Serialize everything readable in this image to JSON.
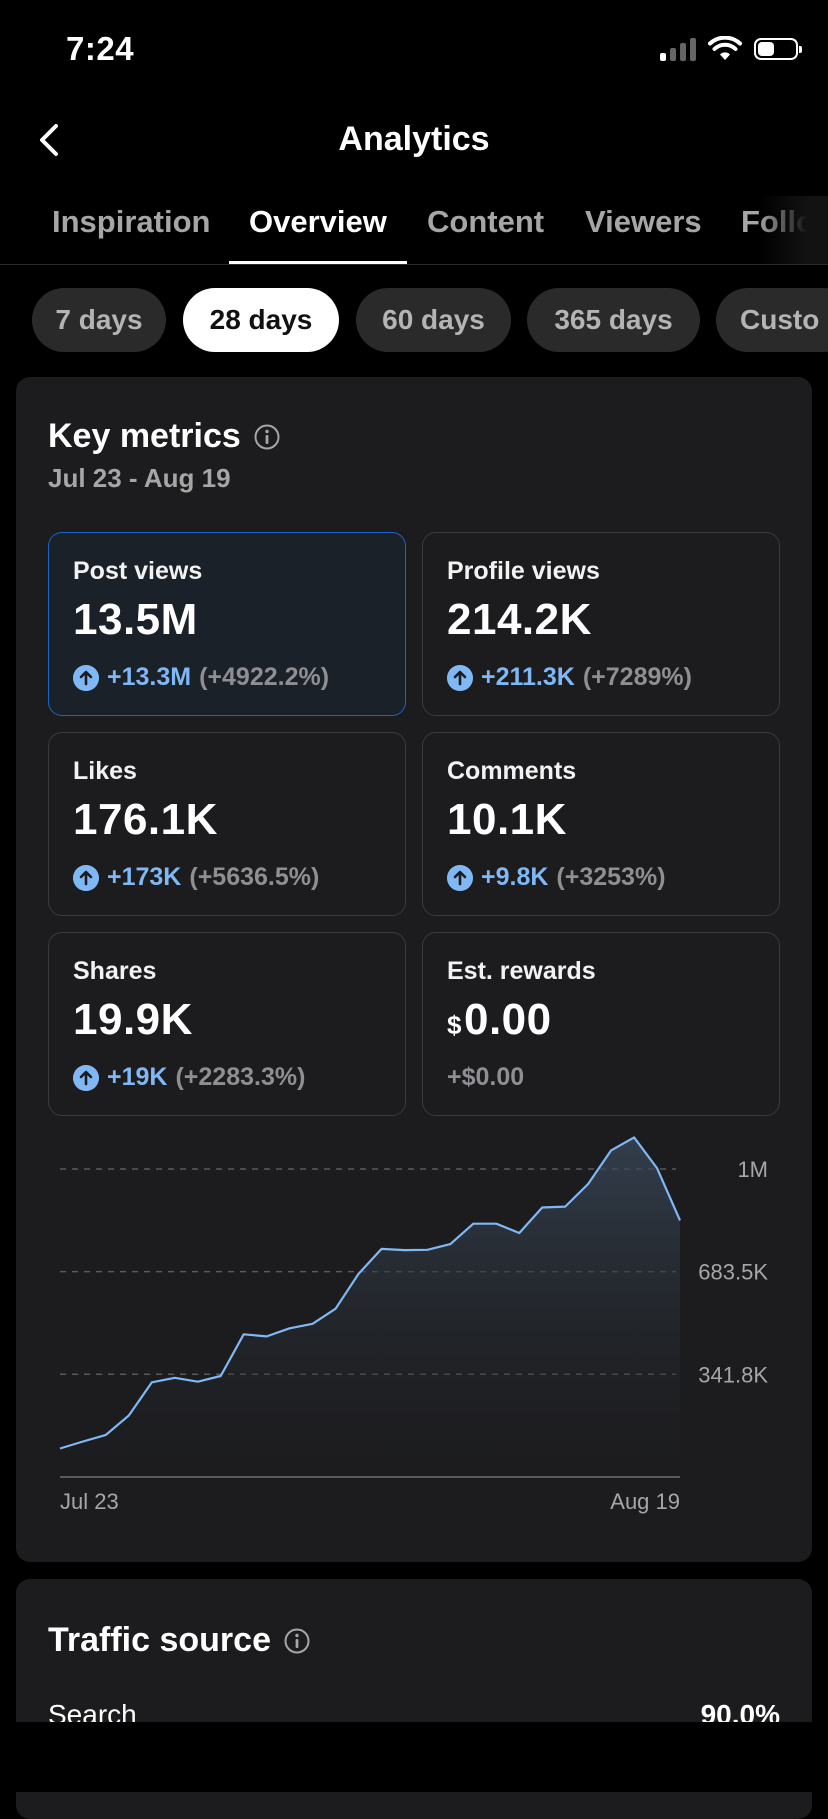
{
  "status_bar": {
    "time": "7:24"
  },
  "nav": {
    "title": "Analytics"
  },
  "tabs": [
    {
      "label": "Inspiration",
      "active": false
    },
    {
      "label": "Overview",
      "active": true
    },
    {
      "label": "Content",
      "active": false
    },
    {
      "label": "Viewers",
      "active": false
    },
    {
      "label": "Follow",
      "active": false
    }
  ],
  "date_ranges": [
    {
      "label": "7 days",
      "active": false
    },
    {
      "label": "28 days",
      "active": true
    },
    {
      "label": "60 days",
      "active": false
    },
    {
      "label": "365 days",
      "active": false
    },
    {
      "label": "Custo",
      "active": false
    }
  ],
  "key_metrics": {
    "title": "Key metrics",
    "date_range": "Jul 23 - Aug 19",
    "metrics": [
      {
        "label": "Post views",
        "value": "13.5M",
        "delta_abs": "+13.3M",
        "delta_pct": "(+4922.2%)",
        "selected": true
      },
      {
        "label": "Profile views",
        "value": "214.2K",
        "delta_abs": "+211.3K",
        "delta_pct": "(+7289%)",
        "selected": false
      },
      {
        "label": "Likes",
        "value": "176.1K",
        "delta_abs": "+173K",
        "delta_pct": "(+5636.5%)",
        "selected": false
      },
      {
        "label": "Comments",
        "value": "10.1K",
        "delta_abs": "+9.8K",
        "delta_pct": "(+3253%)",
        "selected": false
      },
      {
        "label": "Shares",
        "value": "19.9K",
        "delta_abs": "+19K",
        "delta_pct": "(+2283.3%)",
        "selected": false
      },
      {
        "label": "Est. rewards",
        "currency": "$",
        "value": "0.00",
        "delta_neutral": "+$0.00",
        "selected": false
      }
    ]
  },
  "chart_data": {
    "type": "area",
    "x_ticks": [
      "Jul 23",
      "Aug 19"
    ],
    "y_ticks": [
      "1M",
      "683.5K",
      "341.8K"
    ],
    "ylim": [
      0,
      1025000
    ],
    "y_tick_values": [
      1025000,
      683500,
      341800
    ],
    "line_color": "#7fb8f5",
    "grid": "dashed",
    "series": [
      {
        "values": [
          95000,
          118000,
          140000,
          205000,
          315000,
          330000,
          317000,
          336000,
          475000,
          468000,
          495000,
          510000,
          560000,
          676000,
          759000,
          755000,
          756000,
          775000,
          843000,
          843000,
          812000,
          897000,
          900000,
          975000,
          1087000,
          1130000,
          1028000,
          854000
        ]
      }
    ]
  },
  "traffic_source": {
    "title": "Traffic source",
    "rows": [
      {
        "label": "Search",
        "value": "90.0%"
      }
    ]
  }
}
